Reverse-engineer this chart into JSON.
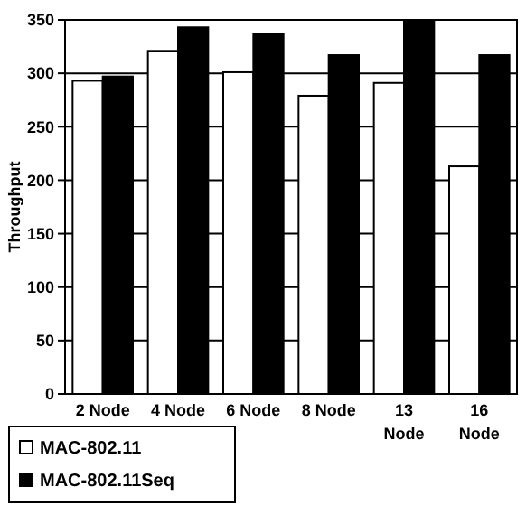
{
  "chart_data": {
    "type": "bar",
    "ylabel": "Throughput",
    "categories": [
      "2 Node",
      "4 Node",
      "6 Node",
      "8 Node",
      "13 Node",
      "16 Node"
    ],
    "series": [
      {
        "name": "MAC-802.11",
        "color": "#ffffff",
        "values": [
          293,
          321,
          301,
          279,
          291,
          213
        ]
      },
      {
        "name": "MAC-802.11Seq",
        "color": "#000000",
        "values": [
          297,
          343,
          337,
          317,
          350,
          317
        ]
      }
    ],
    "ylim": [
      0,
      350
    ],
    "yticks": [
      0,
      50,
      100,
      150,
      200,
      250,
      300,
      350
    ],
    "grid": "y",
    "legend": "bottom left"
  }
}
